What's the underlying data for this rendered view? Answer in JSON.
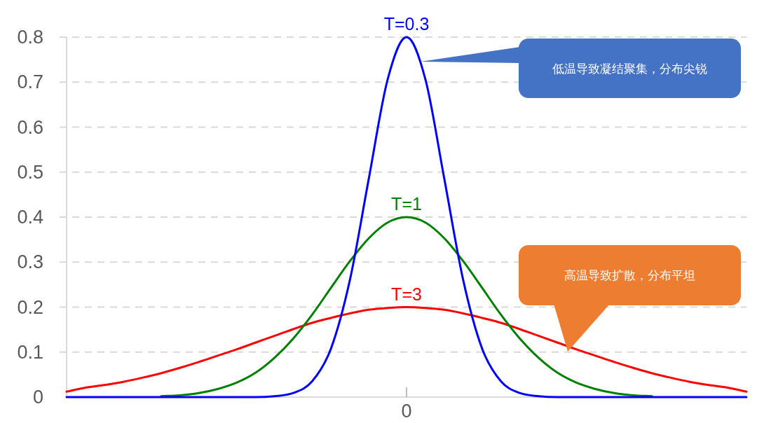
{
  "chart_data": {
    "type": "line",
    "categories": [
      null,
      null,
      null,
      null,
      null,
      null,
      null,
      null,
      null,
      null,
      null,
      null,
      null,
      null,
      null,
      null,
      null,
      null,
      "0",
      null,
      null,
      null,
      null,
      null,
      null,
      null,
      null,
      null,
      null,
      null,
      null,
      null,
      null,
      null,
      null,
      null,
      null
    ],
    "series": [
      {
        "name": "T=3",
        "color": "#ff0000",
        "values": [
          0.012,
          0.021,
          0.027,
          0.034,
          0.043,
          0.053,
          0.065,
          0.078,
          0.092,
          0.106,
          0.121,
          0.136,
          0.151,
          0.165,
          0.176,
          0.186,
          0.194,
          0.198,
          0.2,
          0.198,
          0.194,
          0.186,
          0.176,
          0.165,
          0.151,
          0.136,
          0.121,
          0.106,
          0.092,
          0.078,
          0.065,
          0.053,
          0.043,
          0.034,
          0.027,
          0.021,
          0.012
        ]
      },
      {
        "name": "T=1",
        "color": "#008000",
        "values": [
          null,
          null,
          null,
          null,
          null,
          0.002,
          0.004,
          0.009,
          0.018,
          0.032,
          0.054,
          0.087,
          0.13,
          0.183,
          0.243,
          0.302,
          0.353,
          0.388,
          0.4,
          0.388,
          0.353,
          0.302,
          0.243,
          0.183,
          0.13,
          0.087,
          0.054,
          0.032,
          0.018,
          0.009,
          0.004,
          0.002,
          null,
          null,
          null,
          null,
          null
        ]
      },
      {
        "name": "T=0.3",
        "color": "#0000ff",
        "values": [
          0,
          0,
          0,
          0,
          0,
          0,
          0,
          0,
          0,
          0,
          0,
          0.002,
          0.009,
          0.035,
          0.108,
          0.26,
          0.485,
          0.706,
          0.8,
          0.706,
          0.485,
          0.26,
          0.108,
          0.035,
          0.009,
          0.002,
          0,
          0,
          0,
          0,
          0,
          0,
          0,
          0,
          0,
          0,
          0
        ]
      }
    ],
    "ylim": [
      0,
      0.8
    ],
    "yticks": [
      0,
      0.1,
      0.2,
      0.3,
      0.4,
      0.5,
      0.6,
      0.7,
      0.8
    ],
    "grid": "y",
    "legend": false,
    "marker": "none",
    "line_style": "solid",
    "annotations": [
      "低温导致凝结聚集，分布尖锐",
      "高温导致扩散，分布平坦"
    ]
  }
}
